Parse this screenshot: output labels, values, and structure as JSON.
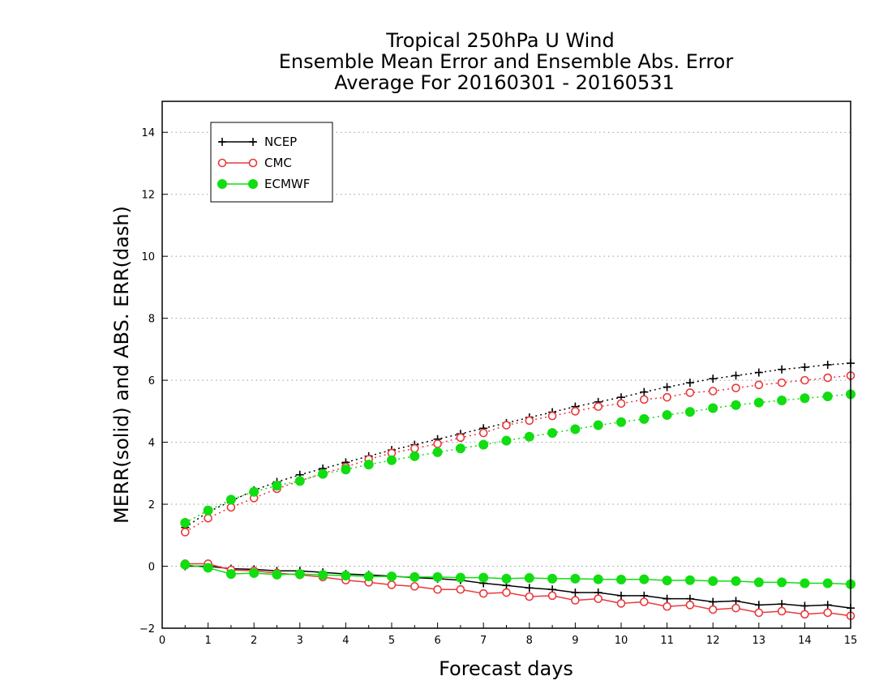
{
  "chart_data": {
    "type": "line",
    "title_lines": [
      "Tropical 250hPa U Wind",
      "Ensemble Mean Error and Ensemble Abs. Error",
      "Average For 20160301 - 20160531"
    ],
    "xlabel": "Forecast days",
    "ylabel": "MERR(solid) and ABS. ERR(dash)",
    "xlim": [
      0,
      15
    ],
    "ylim": [
      -2,
      15
    ],
    "xticks": [
      0,
      1,
      2,
      3,
      4,
      5,
      6,
      7,
      8,
      9,
      10,
      11,
      12,
      13,
      14,
      15
    ],
    "yticks": [
      -2,
      0,
      2,
      4,
      6,
      8,
      10,
      12,
      14
    ],
    "grid": "horizontal dotted",
    "legend_position": "top-left",
    "x": [
      0.5,
      1,
      1.5,
      2,
      2.5,
      3,
      3.5,
      4,
      4.5,
      5,
      5.5,
      6,
      6.5,
      7,
      7.5,
      8,
      8.5,
      9,
      9.5,
      10,
      10.5,
      11,
      11.5,
      12,
      12.5,
      13,
      13.5,
      14,
      14.5,
      15
    ],
    "series": [
      {
        "name": "NCEP",
        "color": "#000000",
        "marker": "plus",
        "merr": [
          0.0,
          0.0,
          -0.08,
          -0.1,
          -0.15,
          -0.15,
          -0.2,
          -0.25,
          -0.28,
          -0.32,
          -0.37,
          -0.4,
          -0.45,
          -0.55,
          -0.62,
          -0.7,
          -0.75,
          -0.85,
          -0.85,
          -0.95,
          -0.95,
          -1.05,
          -1.05,
          -1.15,
          -1.12,
          -1.25,
          -1.22,
          -1.28,
          -1.25,
          -1.35
        ],
        "abs_err": [
          1.25,
          1.75,
          2.1,
          2.45,
          2.72,
          2.95,
          3.15,
          3.35,
          3.55,
          3.75,
          3.92,
          4.1,
          4.27,
          4.45,
          4.62,
          4.8,
          4.97,
          5.15,
          5.3,
          5.45,
          5.62,
          5.78,
          5.92,
          6.05,
          6.15,
          6.25,
          6.35,
          6.42,
          6.5,
          6.55
        ]
      },
      {
        "name": "CMC",
        "color": "#e8393c",
        "marker": "open-circle",
        "merr": [
          0.08,
          0.08,
          -0.12,
          -0.15,
          -0.22,
          -0.28,
          -0.35,
          -0.45,
          -0.52,
          -0.6,
          -0.65,
          -0.75,
          -0.75,
          -0.88,
          -0.85,
          -0.98,
          -0.95,
          -1.1,
          -1.05,
          -1.2,
          -1.15,
          -1.3,
          -1.25,
          -1.4,
          -1.35,
          -1.5,
          -1.45,
          -1.55,
          -1.5,
          -1.6
        ],
        "abs_err": [
          1.1,
          1.55,
          1.9,
          2.2,
          2.5,
          2.75,
          3.0,
          3.2,
          3.45,
          3.65,
          3.8,
          3.95,
          4.15,
          4.3,
          4.55,
          4.7,
          4.85,
          5.0,
          5.15,
          5.25,
          5.38,
          5.45,
          5.6,
          5.65,
          5.75,
          5.85,
          5.92,
          6.0,
          6.08,
          6.15
        ]
      },
      {
        "name": "ECMWF",
        "color": "#11dd11",
        "marker": "filled-circle",
        "merr": [
          0.05,
          -0.05,
          -0.25,
          -0.22,
          -0.27,
          -0.25,
          -0.28,
          -0.3,
          -0.33,
          -0.33,
          -0.35,
          -0.35,
          -0.37,
          -0.37,
          -0.4,
          -0.38,
          -0.4,
          -0.4,
          -0.42,
          -0.43,
          -0.42,
          -0.46,
          -0.45,
          -0.48,
          -0.48,
          -0.52,
          -0.52,
          -0.55,
          -0.55,
          -0.58
        ],
        "abs_err": [
          1.4,
          1.8,
          2.15,
          2.4,
          2.6,
          2.75,
          2.98,
          3.12,
          3.28,
          3.42,
          3.55,
          3.68,
          3.8,
          3.92,
          4.05,
          4.18,
          4.3,
          4.42,
          4.55,
          4.65,
          4.75,
          4.88,
          4.98,
          5.1,
          5.2,
          5.28,
          5.35,
          5.42,
          5.48,
          5.55
        ]
      }
    ]
  }
}
